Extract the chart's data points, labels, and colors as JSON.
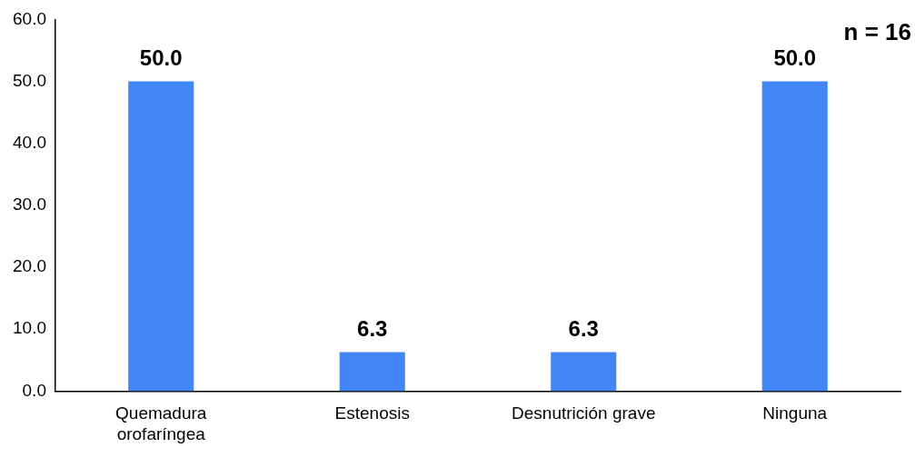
{
  "chart_data": {
    "type": "bar",
    "categories": [
      "Quemadura orofaríngea",
      "Estenosis",
      "Desnutrición grave",
      "Ninguna"
    ],
    "values": [
      50.0,
      6.3,
      6.3,
      50.0
    ],
    "color": "#4285f4",
    "ylim": [
      0,
      60
    ],
    "yticks": [
      {
        "value": 0,
        "label": "0.0"
      },
      {
        "value": 10,
        "label": "10.0"
      },
      {
        "value": 20,
        "label": "20.0"
      },
      {
        "value": 30,
        "label": "30.0"
      },
      {
        "value": 40,
        "label": "40.0"
      },
      {
        "value": 50,
        "label": "50.0"
      },
      {
        "value": 60,
        "label": "60.0"
      }
    ],
    "value_labels": [
      "50.0",
      "6.3",
      "6.3",
      "50.0"
    ],
    "grid": false,
    "legend": false,
    "annotations": [
      "n = 16"
    ]
  }
}
